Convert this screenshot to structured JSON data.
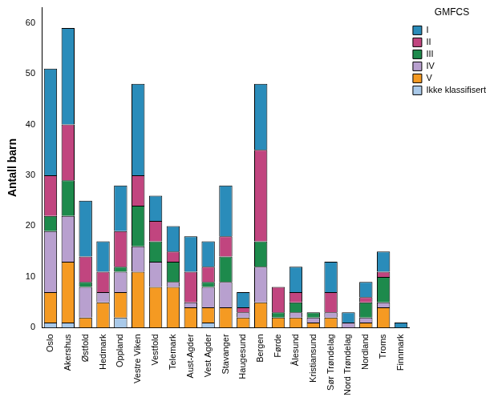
{
  "chart_data": {
    "type": "bar",
    "stacked": true,
    "y_label": "Antall barn",
    "legend_title": "GMFCS",
    "legend": "right",
    "grid": false,
    "categories": [
      "Oslo",
      "Akershus",
      "Østfold",
      "Hedmark",
      "Oppland",
      "Vestre Viken",
      "Vestfold",
      "Telemark",
      "Aust-Agder",
      "Vest Agder",
      "Stavanger",
      "Haugesund",
      "Bergen",
      "Førde",
      "Ålesund",
      "Kristiansund",
      "Sør Trøndelag",
      "Nord Trøndelag",
      "Nordland",
      "Troms",
      "Finnmark"
    ],
    "series": [
      {
        "name": "I",
        "color": "#2a8cba",
        "values": [
          21,
          19,
          11,
          6,
          9,
          18,
          5,
          5,
          7,
          5,
          10,
          3,
          13,
          0,
          5,
          0,
          6,
          2,
          3,
          4,
          1
        ]
      },
      {
        "name": "II",
        "color": "#c1457f",
        "values": [
          8,
          11,
          5,
          4,
          7,
          6,
          4,
          2,
          6,
          3,
          4,
          1,
          18,
          5,
          2,
          0,
          4,
          0,
          1,
          1,
          0
        ]
      },
      {
        "name": "III",
        "color": "#1d8a4c",
        "values": [
          3,
          7,
          1,
          0,
          1,
          8,
          4,
          4,
          0,
          1,
          5,
          0,
          5,
          1,
          2,
          1,
          0,
          0,
          3,
          5,
          0
        ]
      },
      {
        "name": "IV",
        "color": "#b8a0cf",
        "values": [
          12,
          9,
          6,
          2,
          4,
          5,
          5,
          1,
          1,
          4,
          5,
          1,
          7,
          0,
          1,
          1,
          1,
          1,
          1,
          1,
          0
        ]
      },
      {
        "name": "V",
        "color": "#f59a22",
        "values": [
          6,
          12,
          2,
          5,
          5,
          11,
          8,
          8,
          4,
          3,
          4,
          2,
          5,
          2,
          2,
          1,
          2,
          0,
          1,
          4,
          0
        ]
      },
      {
        "name": "Ikke klassifisert",
        "color": "#a9c9e9",
        "values": [
          1,
          1,
          0,
          0,
          2,
          0,
          0,
          0,
          0,
          1,
          0,
          0,
          0,
          0,
          0,
          0,
          0,
          0,
          0,
          0,
          0
        ]
      }
    ],
    "ylim": [
      0,
      63
    ],
    "yticks": [
      0,
      10,
      20,
      30,
      40,
      50,
      60
    ]
  }
}
